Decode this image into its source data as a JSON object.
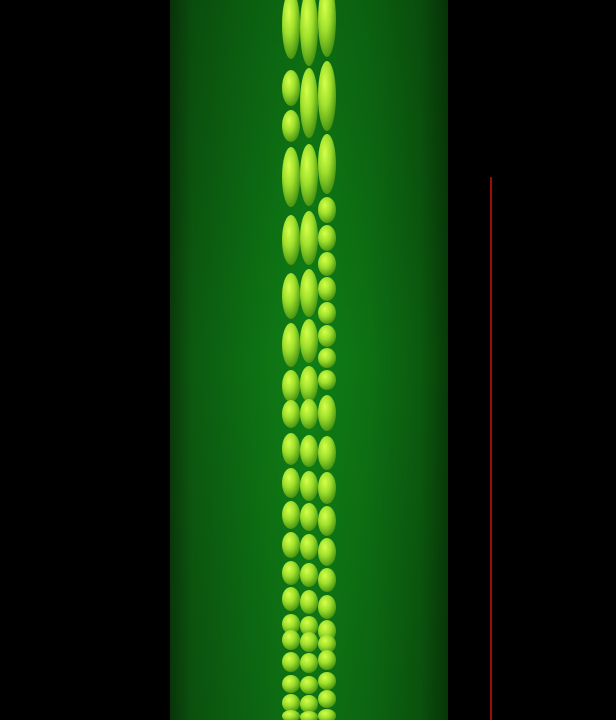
{
  "scene": {
    "background_color": "#000000",
    "cylinder": {
      "edge_color": "#0a3d0a",
      "mid_color": "#0d6b12",
      "center_color": "#0f8a16"
    },
    "particles": {
      "highlight_color": "#c9ff3a",
      "mid_color": "#8ed42a",
      "shadow_color": "#3f8a12",
      "columns": 3
    },
    "indicator_line_color": "#d01010"
  }
}
